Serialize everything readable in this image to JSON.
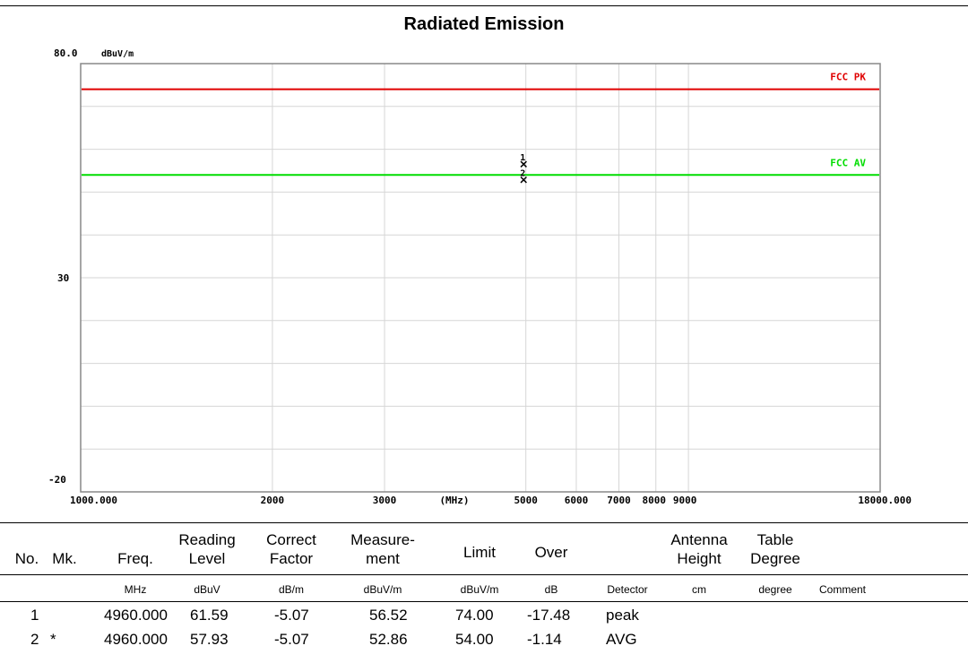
{
  "title": "Radiated Emission",
  "chart_data": {
    "type": "scatter",
    "title": "Radiated Emission",
    "ylabel": "dBuV/m",
    "xlabel": "(MHz)",
    "x_scale": "log",
    "xlim": [
      1000,
      18000
    ],
    "ylim": [
      -20,
      80
    ],
    "y_ticks": [
      "80.0",
      "30",
      "-20"
    ],
    "x_ticks": [
      {
        "value": 1000,
        "label": "1000.000"
      },
      {
        "value": 2000,
        "label": "2000"
      },
      {
        "value": 3000,
        "label": "3000"
      },
      {
        "value": 5000,
        "label": "5000"
      },
      {
        "value": 6000,
        "label": "6000"
      },
      {
        "value": 7000,
        "label": "7000"
      },
      {
        "value": 8000,
        "label": "8000"
      },
      {
        "value": 9000,
        "label": "9000"
      },
      {
        "value": 18000,
        "label": "18000.000"
      }
    ],
    "grid": true,
    "limit_lines": [
      {
        "name": "FCC PK",
        "value": 74.0,
        "color": "#e00000"
      },
      {
        "name": "FCC AV",
        "value": 54.0,
        "color": "#00dd00"
      }
    ],
    "markers": [
      {
        "label": "1",
        "x": 4960.0,
        "y": 56.52
      },
      {
        "label": "2",
        "x": 4960.0,
        "y": 52.86
      }
    ]
  },
  "table": {
    "headers": {
      "no": "No.",
      "mk": "Mk.",
      "freq": "Freq.",
      "reading_1": "Reading",
      "reading_2": "Level",
      "correct_1": "Correct",
      "correct_2": "Factor",
      "measure_1": "Measure-",
      "measure_2": "ment",
      "limit": "Limit",
      "over": "Over",
      "antenna_1": "Antenna",
      "antenna_2": "Height",
      "table_1": "Table",
      "table_2": "Degree"
    },
    "units": {
      "freq": "MHz",
      "reading": "dBuV",
      "correct": "dB/m",
      "measure": "dBuV/m",
      "limit": "dBuV/m",
      "over": "dB",
      "detector": "Detector",
      "height": "cm",
      "degree": "degree",
      "comment": "Comment"
    },
    "rows": [
      {
        "no": "1",
        "mk": "",
        "freq": "4960.000",
        "reading": "61.59",
        "correct": "-5.07",
        "measure": "56.52",
        "limit": "74.00",
        "over": "-17.48",
        "detector": "peak"
      },
      {
        "no": "2",
        "mk": "*",
        "freq": "4960.000",
        "reading": "57.93",
        "correct": "-5.07",
        "measure": "52.86",
        "limit": "54.00",
        "over": "-1.14",
        "detector": "AVG"
      }
    ]
  }
}
